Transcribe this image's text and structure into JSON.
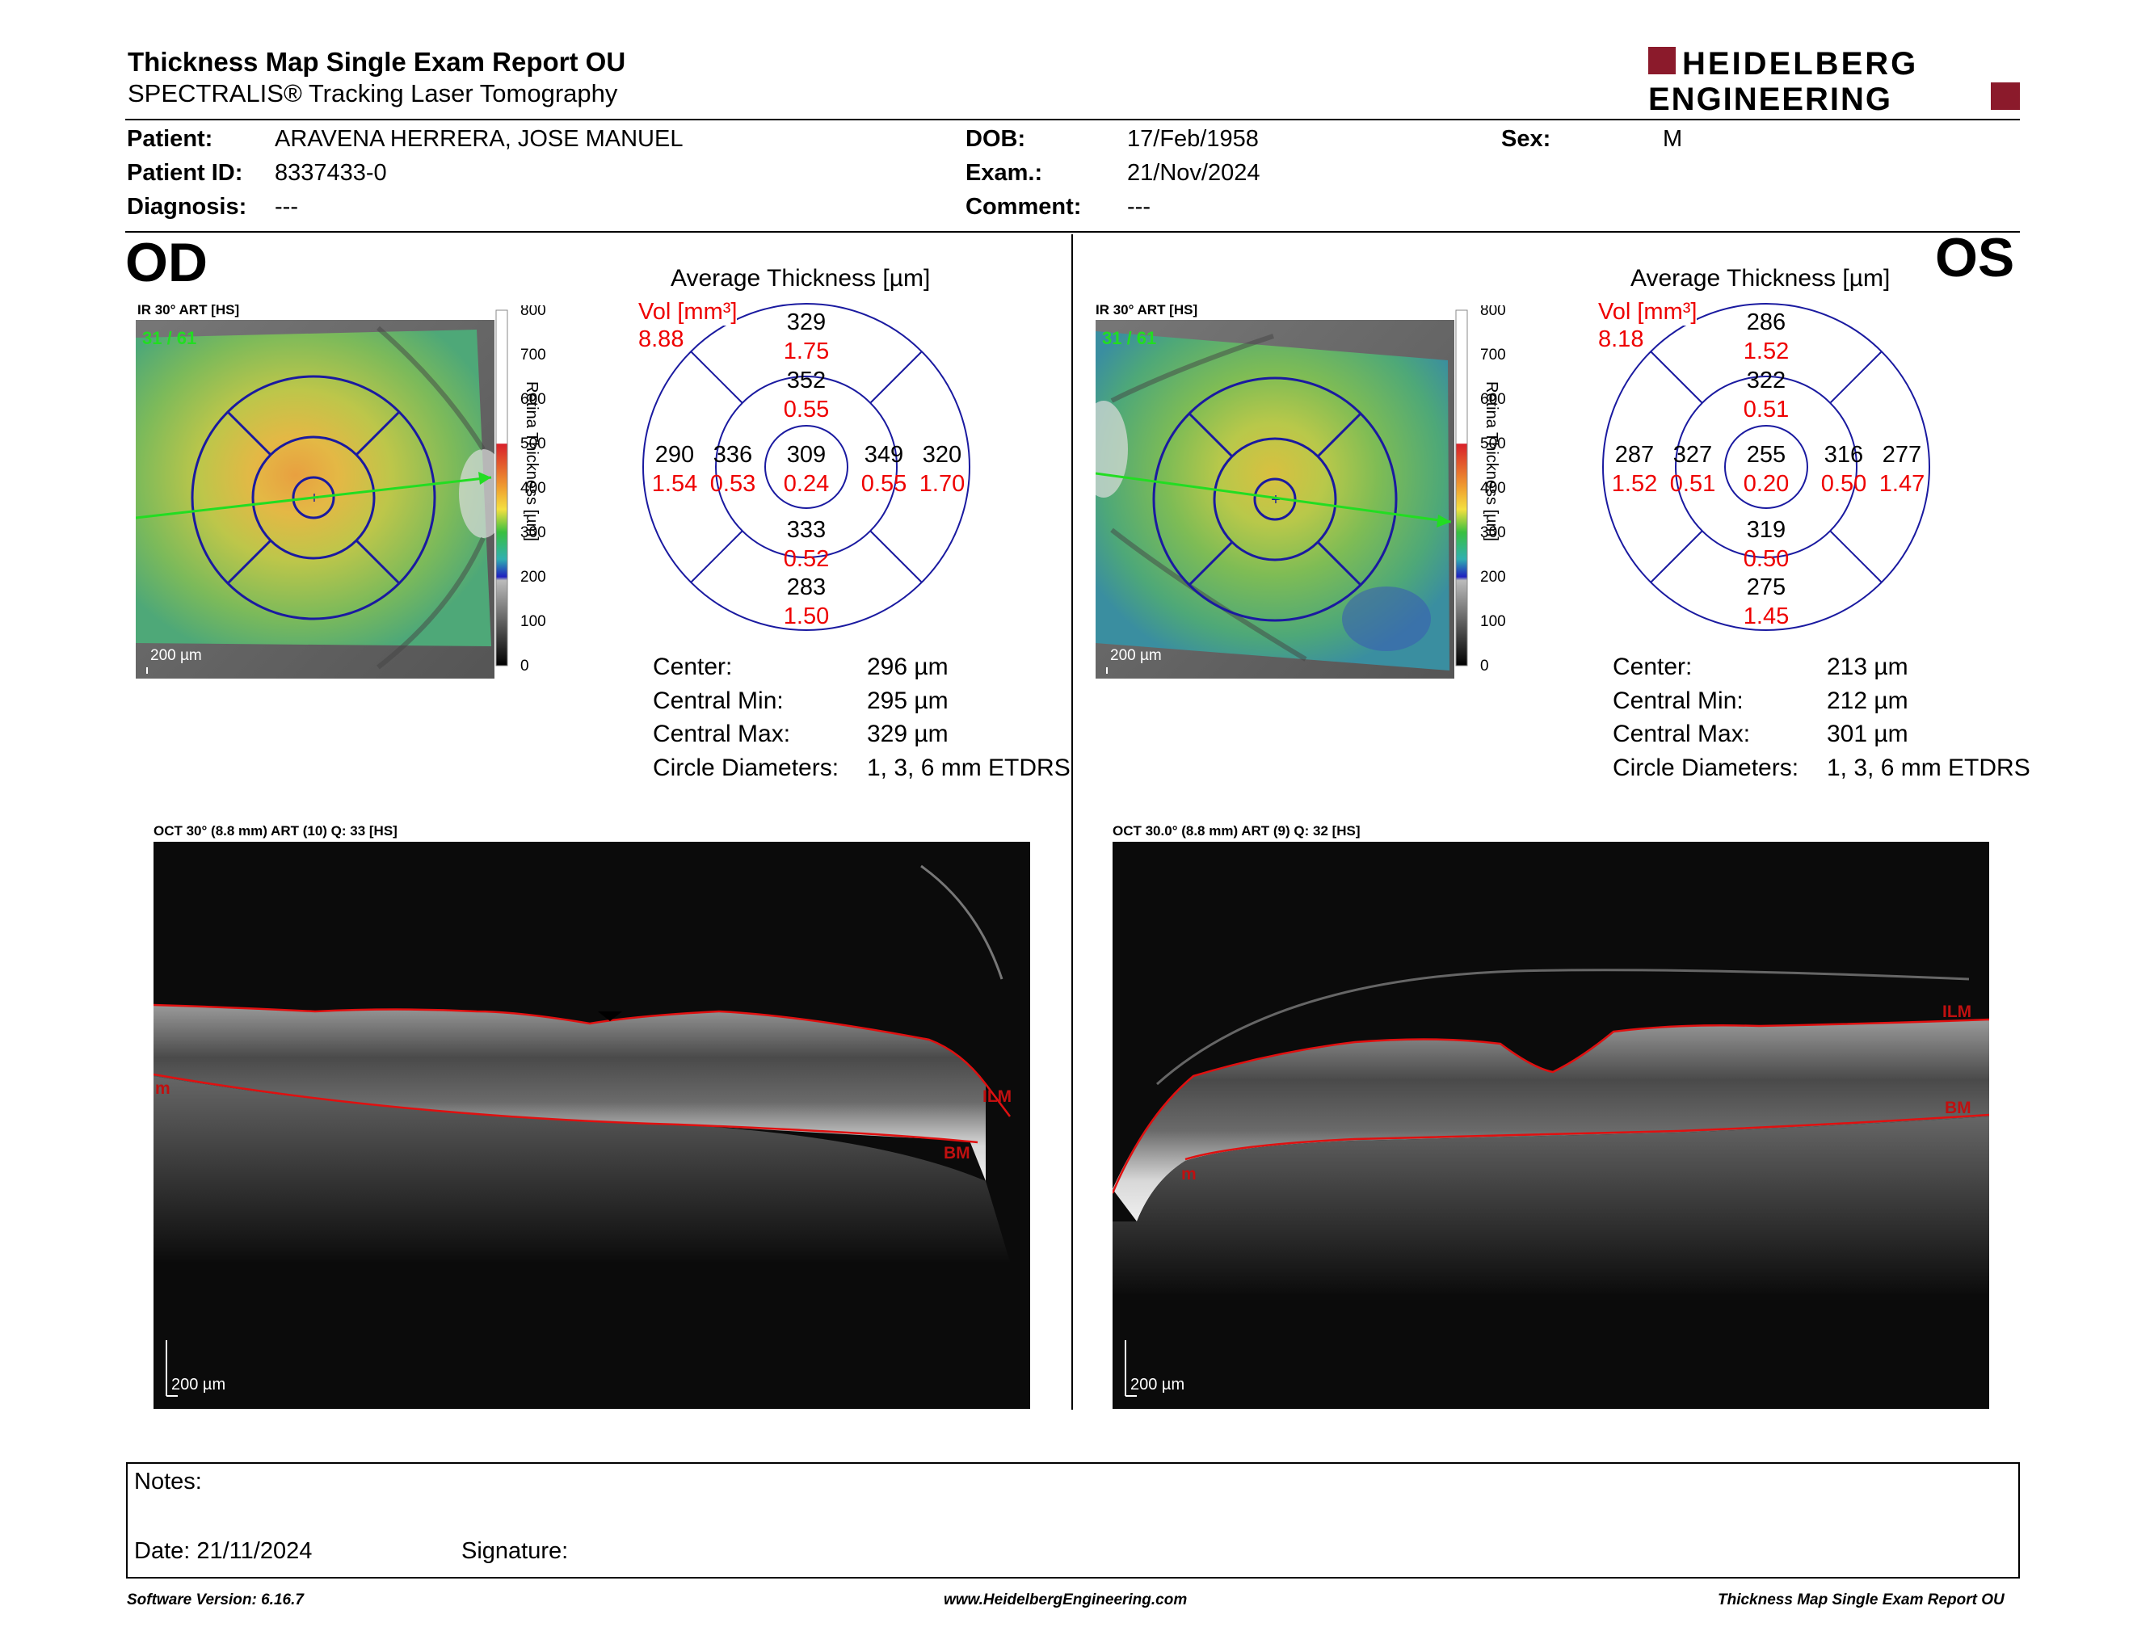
{
  "header": {
    "title": "Thickness Map Single Exam Report OU",
    "subtitle": "SPECTRALIS® Tracking Laser Tomography",
    "logo_line1": "HEIDELBERG",
    "logo_line2": "ENGINEERING",
    "brand_color": "#8B1A2B"
  },
  "patient": {
    "patient_label": "Patient:",
    "patient": "ARAVENA HERRERA, JOSE MANUEL",
    "id_label": "Patient ID:",
    "id": "8337433-0",
    "diag_label": "Diagnosis:",
    "diag": "---",
    "dob_label": "DOB:",
    "dob": "17/Feb/1958",
    "exam_label": "Exam.:",
    "exam": "21/Nov/2024",
    "comment_label": "Comment:",
    "comment": "---",
    "sex_label": "Sex:",
    "sex": "M"
  },
  "od": {
    "eye": "OD",
    "ir_label": "IR 30° ART [HS]",
    "frame": "31 / 61",
    "scale": "200 µm",
    "colorbar_ticks": [
      "800",
      "700",
      "600",
      "500",
      "400",
      "300",
      "200",
      "100",
      "0"
    ],
    "colorbar_label": "Retina Thickness [µm]",
    "avg_title": "Average Thickness [µm]",
    "vol_label": "Vol [mm³]",
    "vol": "8.88",
    "grid": {
      "outer_sup": "329",
      "outer_sup_v": "1.75",
      "inner_sup": "352",
      "inner_sup_v": "0.55",
      "center": "309",
      "center_v": "0.24",
      "inner_inf": "333",
      "inner_inf_v": "0.52",
      "outer_inf": "283",
      "outer_inf_v": "1.50",
      "outer_left": "290",
      "outer_left_v": "1.54",
      "inner_left": "336",
      "inner_left_v": "0.53",
      "inner_right": "349",
      "inner_right_v": "0.55",
      "outer_right": "320",
      "outer_right_v": "1.70"
    },
    "stats": {
      "center_l": "Center:",
      "center": "296 µm",
      "min_l": "Central Min:",
      "min": "295 µm",
      "max_l": "Central Max:",
      "max": "329 µm",
      "diam_l": "Circle Diameters:",
      "diam": "1, 3, 6 mm ETDRS"
    },
    "oct_label": "OCT 30° (8.8 mm) ART (10) Q: 33 [HS]",
    "oct_scale": "200 µm",
    "oct_ilm": "ILM",
    "oct_bm": "BM",
    "oct_m": "m"
  },
  "os": {
    "eye": "OS",
    "ir_label": "IR 30° ART [HS]",
    "frame": "31 / 61",
    "scale": "200 µm",
    "colorbar_ticks": [
      "800",
      "700",
      "600",
      "500",
      "400",
      "300",
      "200",
      "100",
      "0"
    ],
    "colorbar_label": "Retina Thickness [µm]",
    "avg_title": "Average Thickness [µm]",
    "vol_label": "Vol [mm³]",
    "vol": "8.18",
    "grid": {
      "outer_sup": "286",
      "outer_sup_v": "1.52",
      "inner_sup": "322",
      "inner_sup_v": "0.51",
      "center": "255",
      "center_v": "0.20",
      "inner_inf": "319",
      "inner_inf_v": "0.50",
      "outer_inf": "275",
      "outer_inf_v": "1.45",
      "outer_left": "287",
      "outer_left_v": "1.52",
      "inner_left": "327",
      "inner_left_v": "0.51",
      "inner_right": "316",
      "inner_right_v": "0.50",
      "outer_right": "277",
      "outer_right_v": "1.47"
    },
    "stats": {
      "center_l": "Center:",
      "center": "213 µm",
      "min_l": "Central Min:",
      "min": "212 µm",
      "max_l": "Central Max:",
      "max": "301 µm",
      "diam_l": "Circle Diameters:",
      "diam": "1, 3, 6 mm ETDRS"
    },
    "oct_label": "OCT 30.0° (8.8 mm) ART (9) Q: 32 [HS]",
    "oct_scale": "200 µm",
    "oct_ilm": "ILM",
    "oct_bm": "BM",
    "oct_m": "m"
  },
  "notes": {
    "notes_label": "Notes:",
    "date_label": "Date: 21/11/2024",
    "signature_label": "Signature:"
  },
  "footer": {
    "software": "Software Version: 6.16.7",
    "website": "www.HeidelbergEngineering.com",
    "report": "Thickness Map Single Exam Report OU"
  }
}
